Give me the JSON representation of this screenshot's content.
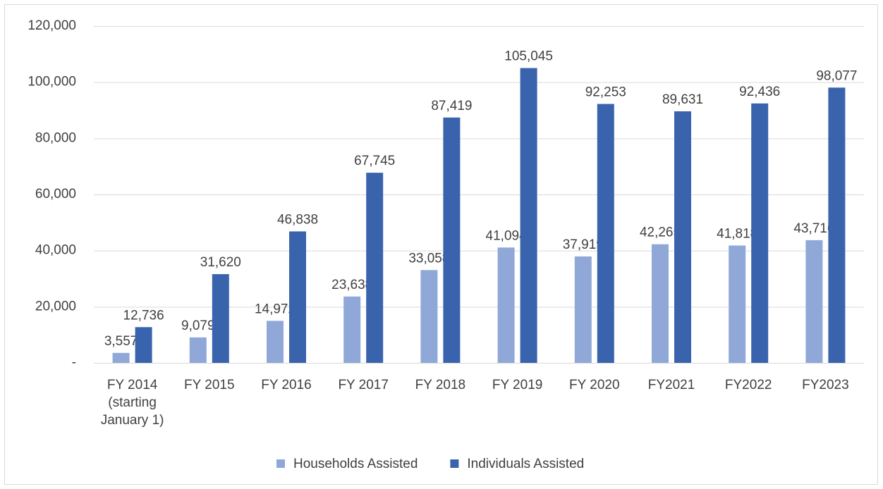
{
  "chart_data": {
    "type": "bar",
    "categories": [
      "FY 2014 (starting January 1)",
      "FY 2015",
      "FY 2016",
      "FY 2017",
      "FY 2018",
      "FY 2019",
      "FY 2020",
      "FY2021",
      "FY2022",
      "FY2023"
    ],
    "series": [
      {
        "name": "Households Assisted",
        "color": "#8fa8d8",
        "values": [
          3557,
          9079,
          14972,
          23638,
          33058,
          41094,
          37919,
          42265,
          41818,
          43716
        ],
        "value_labels": [
          "3,557",
          "9,079",
          "14,972",
          "23,638",
          "33,058",
          "41,094",
          "37,919",
          "42,265",
          "41,818",
          "43,716"
        ]
      },
      {
        "name": "Individuals Assisted",
        "color": "#3a63ad",
        "values": [
          12736,
          31620,
          46838,
          67745,
          87419,
          105045,
          92253,
          89631,
          92436,
          98077
        ],
        "value_labels": [
          "12,736",
          "31,620",
          "46,838",
          "67,745",
          "87,419",
          "105,045",
          "92,253",
          "89,631",
          "92,436",
          "98,077"
        ]
      }
    ],
    "ylim": [
      0,
      120000
    ],
    "yticks": [
      {
        "value": 0,
        "label": "-"
      },
      {
        "value": 20000,
        "label": "20,000"
      },
      {
        "value": 40000,
        "label": "40,000"
      },
      {
        "value": 60000,
        "label": "60,000"
      },
      {
        "value": 80000,
        "label": "80,000"
      },
      {
        "value": 100000,
        "label": "100,000"
      },
      {
        "value": 120000,
        "label": "120,000"
      }
    ],
    "grid": true,
    "legend": "bottom"
  }
}
